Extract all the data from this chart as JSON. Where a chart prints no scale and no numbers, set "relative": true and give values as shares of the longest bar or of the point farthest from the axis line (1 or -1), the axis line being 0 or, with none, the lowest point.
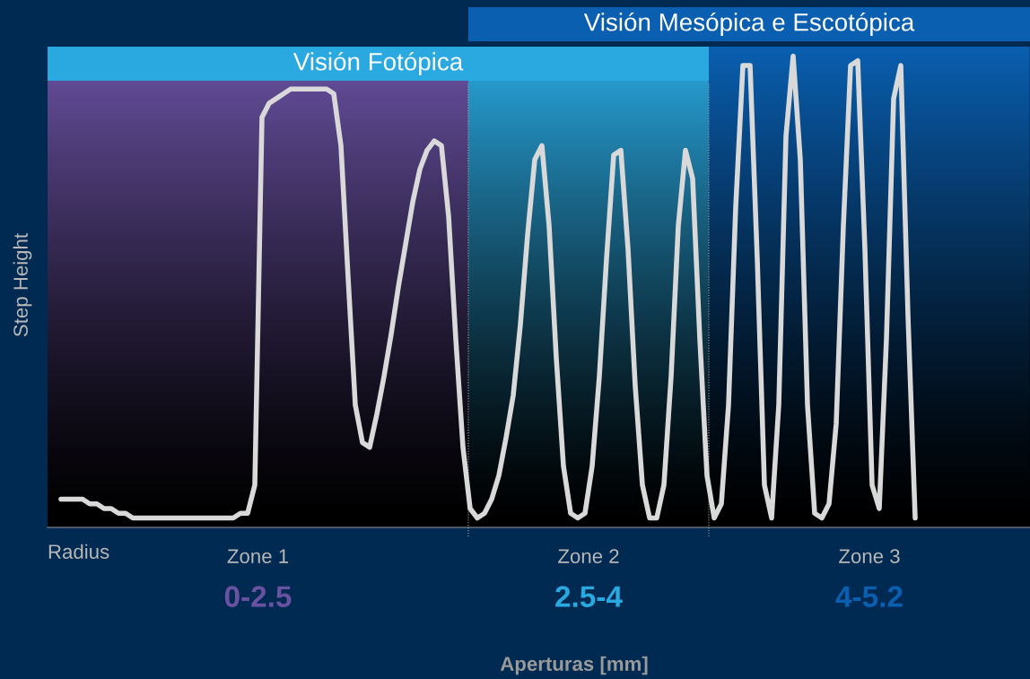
{
  "chart_data": {
    "type": "line",
    "relative": true,
    "ylabel": "Step Height",
    "marker": "none",
    "line_style": "solid",
    "categories": [
      null,
      null,
      null,
      null,
      null,
      null,
      null,
      null,
      null,
      null,
      null,
      null,
      null,
      null,
      null,
      null,
      null,
      null,
      null,
      null,
      null,
      null,
      null,
      null,
      null,
      null,
      null,
      null,
      null,
      null,
      null,
      null,
      null,
      null,
      null,
      null,
      null,
      null,
      null,
      null,
      null,
      null,
      null,
      null,
      null,
      null,
      null,
      null,
      null,
      null,
      null,
      null,
      null,
      null,
      null,
      null,
      null,
      null,
      null,
      null,
      null,
      null,
      null,
      null,
      null,
      null,
      null,
      null,
      null,
      null,
      null,
      null,
      null,
      null,
      null,
      null,
      null,
      null,
      null,
      null,
      null,
      null,
      null,
      null,
      null,
      null,
      null,
      null,
      null,
      null,
      null,
      null,
      null,
      null,
      null,
      null,
      null,
      null,
      null,
      null,
      null,
      null,
      null,
      null,
      null,
      null,
      null,
      null,
      null,
      null,
      null,
      null,
      null,
      null,
      null,
      null,
      null,
      null,
      null,
      null
    ],
    "series": [
      {
        "color": "#d9d9d9",
        "values": [
          0.06,
          0.06,
          0.06,
          0.06,
          0.05,
          0.05,
          0.04,
          0.04,
          0.03,
          0.03,
          0.02,
          0.02,
          0.02,
          0.02,
          0.02,
          0.02,
          0.02,
          0.02,
          0.02,
          0.02,
          0.02,
          0.02,
          0.02,
          0.02,
          0.02,
          0.03,
          0.03,
          0.09,
          0.87,
          0.9,
          0.91,
          0.92,
          0.93,
          0.93,
          0.93,
          0.93,
          0.93,
          0.93,
          0.92,
          0.81,
          0.53,
          0.26,
          0.18,
          0.17,
          0.24,
          0.32,
          0.41,
          0.51,
          0.6,
          0.69,
          0.76,
          0.8,
          0.82,
          0.81,
          0.66,
          0.4,
          0.17,
          0.04,
          0.02,
          0.03,
          0.06,
          0.11,
          0.19,
          0.28,
          0.43,
          0.62,
          0.78,
          0.81,
          0.64,
          0.36,
          0.13,
          0.03,
          0.02,
          0.03,
          0.13,
          0.32,
          0.57,
          0.79,
          0.8,
          0.59,
          0.3,
          0.09,
          0.02,
          0.02,
          0.09,
          0.32,
          0.64,
          0.8,
          0.74,
          0.4,
          0.11,
          0.02,
          0.05,
          0.26,
          0.68,
          0.98,
          0.98,
          0.57,
          0.09,
          0.02,
          0.26,
          0.83,
          1.0,
          0.78,
          0.26,
          0.03,
          0.02,
          0.05,
          0.22,
          0.64,
          0.98,
          0.99,
          0.59,
          0.09,
          0.04,
          0.4,
          0.91,
          0.98,
          0.45,
          0.02
        ]
      }
    ],
    "annotations": [
      "Visión Fotópica",
      "Visión Mesópica e Escotópica",
      "Zone 1",
      "Zone 2",
      "Zone 3",
      "0-2.5",
      "2.5-4",
      "4-5.2",
      "Radius",
      "Aperturas [mm]"
    ]
  }
}
